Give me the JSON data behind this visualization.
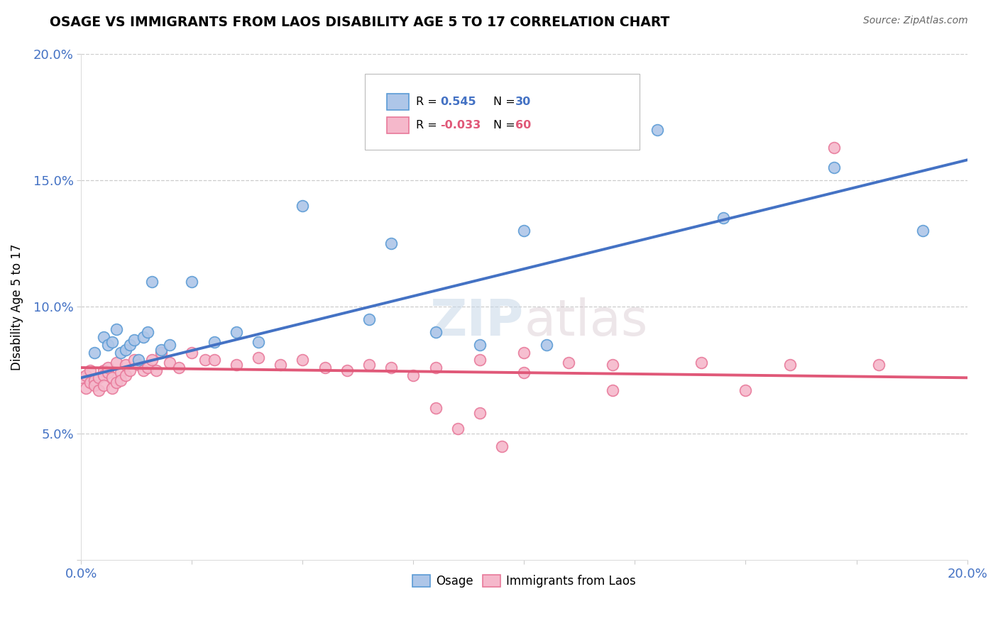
{
  "title": "OSAGE VS IMMIGRANTS FROM LAOS DISABILITY AGE 5 TO 17 CORRELATION CHART",
  "source": "Source: ZipAtlas.com",
  "ylabel": "Disability Age 5 to 17",
  "xlim": [
    0.0,
    0.2
  ],
  "ylim": [
    0.0,
    0.2
  ],
  "xticks": [
    0.0,
    0.025,
    0.05,
    0.075,
    0.1,
    0.125,
    0.15,
    0.175,
    0.2
  ],
  "yticks": [
    0.05,
    0.1,
    0.15,
    0.2
  ],
  "xticklabels_show": {
    "0.0": "0.0%",
    "0.20": "20.0%"
  },
  "yticklabels_show": {
    "0.05": "5.0%",
    "0.10": "10.0%",
    "0.15": "15.0%",
    "0.20": "20.0%"
  },
  "grid_yticks": [
    0.05,
    0.1,
    0.15,
    0.2
  ],
  "osage_R": 0.545,
  "osage_N": 30,
  "laos_R": -0.033,
  "laos_N": 60,
  "osage_color": "#aec6e8",
  "laos_color": "#f5b8cb",
  "osage_edge_color": "#5b9bd5",
  "laos_edge_color": "#e8799a",
  "osage_line_color": "#4472c4",
  "laos_line_color": "#e05878",
  "watermark": "ZIPatlas",
  "osage_line_x0": 0.0,
  "osage_line_y0": 0.072,
  "osage_line_x1": 0.2,
  "osage_line_y1": 0.158,
  "laos_line_x0": 0.0,
  "laos_line_y0": 0.076,
  "laos_line_x1": 0.2,
  "laos_line_y1": 0.072,
  "osage_x": [
    0.003,
    0.005,
    0.006,
    0.007,
    0.008,
    0.009,
    0.01,
    0.011,
    0.012,
    0.013,
    0.014,
    0.015,
    0.016,
    0.018,
    0.02,
    0.025,
    0.03,
    0.035,
    0.04,
    0.05,
    0.065,
    0.07,
    0.08,
    0.09,
    0.1,
    0.105,
    0.13,
    0.145,
    0.17,
    0.19
  ],
  "osage_y": [
    0.082,
    0.088,
    0.085,
    0.086,
    0.091,
    0.082,
    0.083,
    0.085,
    0.087,
    0.079,
    0.088,
    0.09,
    0.11,
    0.083,
    0.085,
    0.11,
    0.086,
    0.09,
    0.086,
    0.14,
    0.095,
    0.125,
    0.09,
    0.085,
    0.13,
    0.085,
    0.17,
    0.135,
    0.155,
    0.13
  ],
  "laos_x": [
    0.0,
    0.001,
    0.001,
    0.002,
    0.002,
    0.003,
    0.003,
    0.004,
    0.004,
    0.005,
    0.005,
    0.005,
    0.006,
    0.006,
    0.007,
    0.007,
    0.008,
    0.008,
    0.009,
    0.009,
    0.01,
    0.01,
    0.011,
    0.012,
    0.013,
    0.014,
    0.015,
    0.016,
    0.017,
    0.018,
    0.02,
    0.022,
    0.025,
    0.028,
    0.03,
    0.035,
    0.04,
    0.045,
    0.05,
    0.055,
    0.06,
    0.065,
    0.07,
    0.075,
    0.08,
    0.09,
    0.1,
    0.11,
    0.12,
    0.14,
    0.15,
    0.16,
    0.17,
    0.18,
    0.08,
    0.09,
    0.1,
    0.12,
    0.085,
    0.095
  ],
  "laos_y": [
    0.072,
    0.073,
    0.068,
    0.075,
    0.07,
    0.071,
    0.069,
    0.072,
    0.067,
    0.075,
    0.073,
    0.069,
    0.074,
    0.076,
    0.072,
    0.068,
    0.078,
    0.07,
    0.074,
    0.071,
    0.073,
    0.077,
    0.075,
    0.079,
    0.077,
    0.075,
    0.076,
    0.079,
    0.075,
    0.082,
    0.078,
    0.076,
    0.082,
    0.079,
    0.079,
    0.077,
    0.08,
    0.077,
    0.079,
    0.076,
    0.075,
    0.077,
    0.076,
    0.073,
    0.076,
    0.079,
    0.082,
    0.078,
    0.077,
    0.078,
    0.067,
    0.077,
    0.163,
    0.077,
    0.06,
    0.058,
    0.074,
    0.067,
    0.052,
    0.045
  ]
}
